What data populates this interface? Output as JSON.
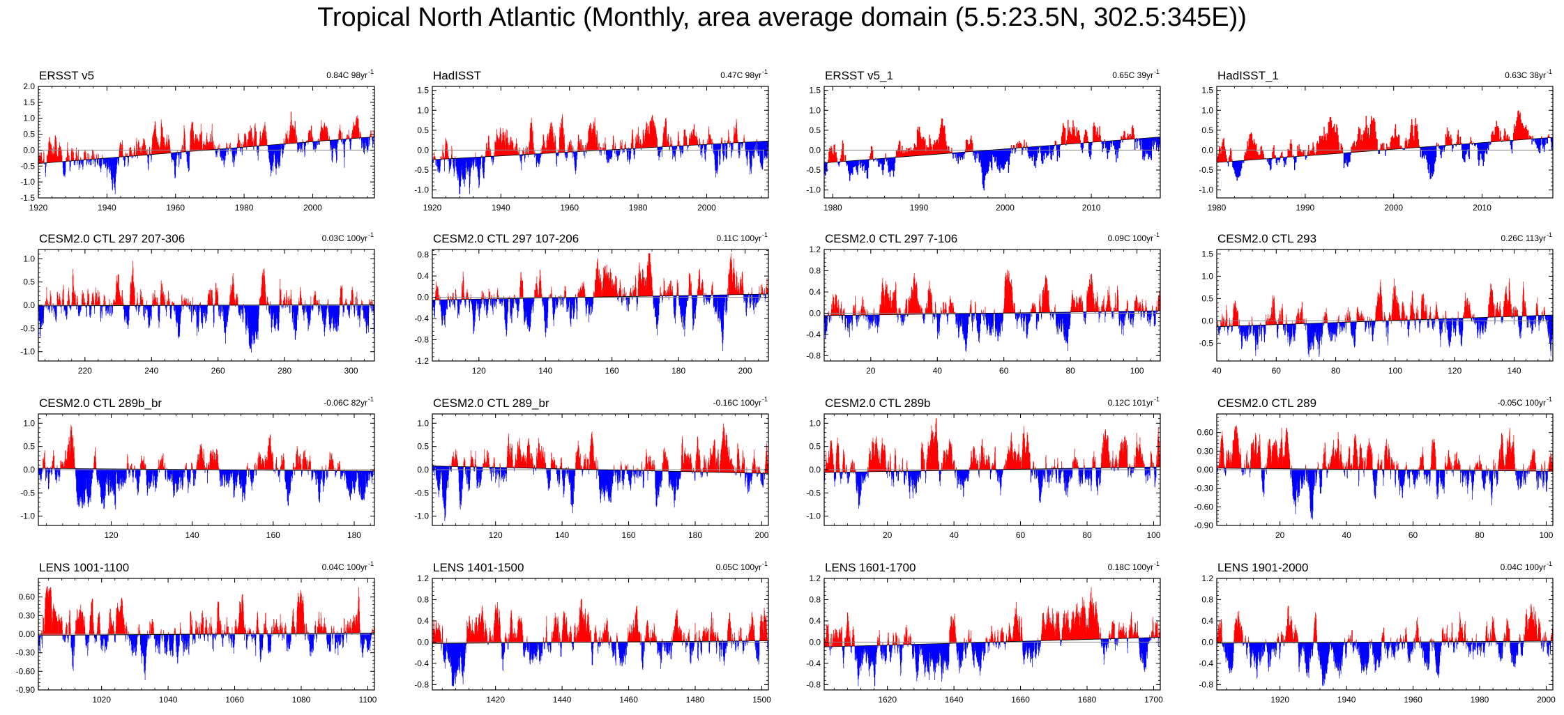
{
  "title": "Tropical North Atlantic (Monthly, area average domain (5.5:23.5N, 302.5:345E))",
  "colors": {
    "positive": "#ff0000",
    "negative": "#0000ff",
    "axis": "#000000",
    "zero_line": "#888888"
  },
  "chart_data": [
    {
      "type": "bar",
      "title": "ERSST v5",
      "trend": "0.84C 98yr",
      "trend_exp": "-1",
      "xlim": [
        1920,
        2018
      ],
      "xticks": [
        1920,
        1940,
        1960,
        1980,
        2000
      ],
      "ylim": [
        -1.5,
        2.0
      ],
      "yticks": [
        "2.0",
        "1.5",
        "1.0",
        "0.5",
        "0.0",
        "-0.5",
        "-1.0",
        "-1.5"
      ],
      "trend_values": [
        -0.42,
        0.42
      ],
      "amplitude": 0.4,
      "seed": 11
    },
    {
      "type": "bar",
      "title": "HadISST",
      "trend": "0.47C 98yr",
      "trend_exp": "-1",
      "xlim": [
        1920,
        2018
      ],
      "xticks": [
        1920,
        1940,
        1960,
        1980,
        2000
      ],
      "ylim": [
        -1.2,
        1.6
      ],
      "yticks": [
        "1.5",
        "1.0",
        "0.5",
        "0.0",
        "-0.5",
        "-1.0"
      ],
      "trend_values": [
        -0.24,
        0.23
      ],
      "amplitude": 0.35,
      "seed": 23
    },
    {
      "type": "bar",
      "title": "ERSST v5_1",
      "trend": "0.65C 39yr",
      "trend_exp": "-1",
      "xlim": [
        1979,
        2018
      ],
      "xticks": [
        1980,
        1990,
        2000,
        2010
      ],
      "ylim": [
        -1.2,
        1.6
      ],
      "yticks": [
        "1.5",
        "1.0",
        "0.5",
        "0.0",
        "-0.5",
        "-1.0"
      ],
      "trend_values": [
        -0.32,
        0.33
      ],
      "amplitude": 0.35,
      "seed": 37
    },
    {
      "type": "bar",
      "title": "HadISST_1",
      "trend": "0.63C 38yr",
      "trend_exp": "-1",
      "xlim": [
        1980,
        2018
      ],
      "xticks": [
        1980,
        1990,
        2000,
        2010
      ],
      "ylim": [
        -1.2,
        1.6
      ],
      "yticks": [
        "1.5",
        "1.0",
        "0.5",
        "0.0",
        "-0.5",
        "-1.0"
      ],
      "trend_values": [
        -0.31,
        0.32
      ],
      "amplitude": 0.35,
      "seed": 41
    },
    {
      "type": "bar",
      "title": "CESM2.0 CTL 297 207-306",
      "trend": "0.03C 100yr",
      "trend_exp": "-1",
      "xlim": [
        206,
        307
      ],
      "xticks": [
        220,
        240,
        260,
        280,
        300
      ],
      "ylim": [
        -1.2,
        1.2
      ],
      "yticks": [
        "1.0",
        "0.5",
        "0.0",
        "-0.5",
        "-1.0"
      ],
      "trend_values": [
        -0.015,
        0.015
      ],
      "amplitude": 0.32,
      "seed": 53
    },
    {
      "type": "bar",
      "title": "CESM2.0 CTL 297 107-206",
      "trend": "0.11C 100yr",
      "trend_exp": "-1",
      "xlim": [
        106,
        207
      ],
      "xticks": [
        120,
        140,
        160,
        180,
        200
      ],
      "ylim": [
        -1.2,
        0.9
      ],
      "yticks": [
        "0.8",
        "0.4",
        "0.0",
        "-0.4",
        "-0.8",
        "-1.2"
      ],
      "trend_values": [
        -0.05,
        0.06
      ],
      "amplitude": 0.3,
      "seed": 67
    },
    {
      "type": "bar",
      "title": "CESM2.0 CTL 297 7-106",
      "trend": "0.09C 100yr",
      "trend_exp": "-1",
      "xlim": [
        6,
        107
      ],
      "xticks": [
        20,
        40,
        60,
        80,
        100
      ],
      "ylim": [
        -0.9,
        1.2
      ],
      "yticks": [
        "1.2",
        "0.8",
        "0.4",
        "0.0",
        "-0.4",
        "-0.8"
      ],
      "trend_values": [
        -0.045,
        0.045
      ],
      "amplitude": 0.28,
      "seed": 79
    },
    {
      "type": "bar",
      "title": "CESM2.0 CTL 293",
      "trend": "0.26C 113yr",
      "trend_exp": "-1",
      "xlim": [
        40,
        153
      ],
      "xticks": [
        40,
        60,
        80,
        100,
        120,
        140
      ],
      "ylim": [
        -0.9,
        1.6
      ],
      "yticks": [
        "1.5",
        "1.0",
        "0.5",
        "0.0",
        "-0.5"
      ],
      "trend_values": [
        -0.13,
        0.13
      ],
      "amplitude": 0.3,
      "seed": 83
    },
    {
      "type": "bar",
      "title": "CESM2.0 CTL 289b_br",
      "trend": "-0.06C 82yr",
      "trend_exp": "-1",
      "xlim": [
        102,
        185
      ],
      "xticks": [
        120,
        140,
        160,
        180
      ],
      "ylim": [
        -1.2,
        1.2
      ],
      "yticks": [
        "1.0",
        "0.5",
        "0.0",
        "-0.5",
        "-1.0"
      ],
      "trend_values": [
        0.03,
        -0.03
      ],
      "amplitude": 0.32,
      "seed": 97
    },
    {
      "type": "bar",
      "title": "CESM2.0 CTL 289_br",
      "trend": "-0.16C 100yr",
      "trend_exp": "-1",
      "xlim": [
        101,
        202
      ],
      "xticks": [
        120,
        140,
        160,
        180,
        200
      ],
      "ylim": [
        -1.2,
        1.2
      ],
      "yticks": [
        "1.0",
        "0.5",
        "0.0",
        "-0.5",
        "-1.0"
      ],
      "trend_values": [
        0.08,
        -0.08
      ],
      "amplitude": 0.32,
      "seed": 101
    },
    {
      "type": "bar",
      "title": "CESM2.0 CTL 289b",
      "trend": "0.12C 101yr",
      "trend_exp": "-1",
      "xlim": [
        1,
        102
      ],
      "xticks": [
        20,
        40,
        60,
        80,
        100
      ],
      "ylim": [
        -1.2,
        1.2
      ],
      "yticks": [
        "1.0",
        "0.5",
        "0.0",
        "-0.5",
        "-1.0"
      ],
      "trend_values": [
        -0.06,
        0.06
      ],
      "amplitude": 0.32,
      "seed": 113
    },
    {
      "type": "bar",
      "title": "CESM2.0 CTL 289",
      "trend": "-0.05C 100yr",
      "trend_exp": "-1",
      "xlim": [
        1,
        102
      ],
      "xticks": [
        20,
        40,
        60,
        80,
        100
      ],
      "ylim": [
        -0.9,
        0.9
      ],
      "yticks": [
        "0.60",
        "0.30",
        "0.00",
        "-0.30",
        "-0.60",
        "-0.90"
      ],
      "trend_values": [
        0.025,
        -0.025
      ],
      "amplitude": 0.25,
      "seed": 127
    },
    {
      "type": "bar",
      "title": "LENS 1001-1100",
      "trend": "0.04C 100yr",
      "trend_exp": "-1",
      "xlim": [
        1001,
        1102
      ],
      "xticks": [
        1020,
        1040,
        1060,
        1080,
        1100
      ],
      "ylim": [
        -0.9,
        0.9
      ],
      "yticks": [
        "0.60",
        "0.30",
        "0.00",
        "-0.30",
        "-0.60",
        "-0.90"
      ],
      "trend_values": [
        -0.02,
        0.02
      ],
      "amplitude": 0.25,
      "seed": 131
    },
    {
      "type": "bar",
      "title": "LENS 1401-1500",
      "trend": "0.05C 100yr",
      "trend_exp": "-1",
      "xlim": [
        1401,
        1502
      ],
      "xticks": [
        1420,
        1440,
        1460,
        1480,
        1500
      ],
      "ylim": [
        -0.9,
        1.2
      ],
      "yticks": [
        "1.2",
        "0.8",
        "0.4",
        "0.0",
        "-0.4",
        "-0.8"
      ],
      "trend_values": [
        -0.025,
        0.025
      ],
      "amplitude": 0.28,
      "seed": 139
    },
    {
      "type": "bar",
      "title": "LENS 1601-1700",
      "trend": "0.18C 100yr",
      "trend_exp": "-1",
      "xlim": [
        1601,
        1702
      ],
      "xticks": [
        1620,
        1640,
        1660,
        1680,
        1700
      ],
      "ylim": [
        -0.9,
        1.2
      ],
      "yticks": [
        "1.2",
        "0.8",
        "0.4",
        "0.0",
        "-0.4",
        "-0.8"
      ],
      "trend_values": [
        -0.09,
        0.09
      ],
      "amplitude": 0.28,
      "seed": 149
    },
    {
      "type": "bar",
      "title": "LENS 1901-2000",
      "trend": "0.04C 100yr",
      "trend_exp": "-1",
      "xlim": [
        1901,
        2002
      ],
      "xticks": [
        1920,
        1940,
        1960,
        1980,
        2000
      ],
      "ylim": [
        -0.9,
        1.2
      ],
      "yticks": [
        "1.2",
        "0.8",
        "0.4",
        "0.0",
        "-0.4",
        "-0.8"
      ],
      "trend_values": [
        -0.02,
        0.02
      ],
      "amplitude": 0.28,
      "seed": 157
    }
  ]
}
